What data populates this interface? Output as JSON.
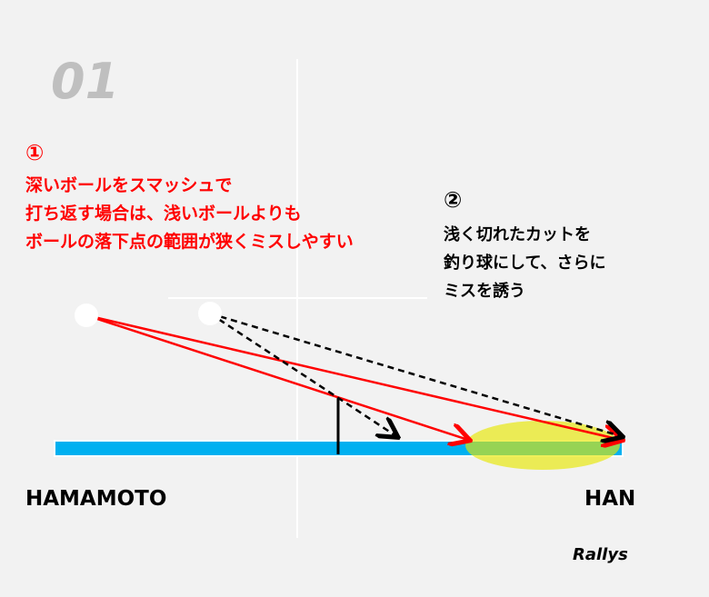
{
  "header": {
    "number": "01"
  },
  "notes": [
    {
      "marker": "①",
      "lines": [
        "深いボールをスマッシュで",
        "打ち返す場合は、浅いボールよりも",
        "ボールの落下点の範囲が狭くミスしやすい"
      ]
    },
    {
      "marker": "②",
      "lines": [
        "浅く切れたカットを",
        "釣り球にして、さらに",
        "ミスを誘う"
      ]
    }
  ],
  "players": {
    "left": "HAMAMOTO",
    "right": "HAN"
  },
  "brand": "Rallys"
}
